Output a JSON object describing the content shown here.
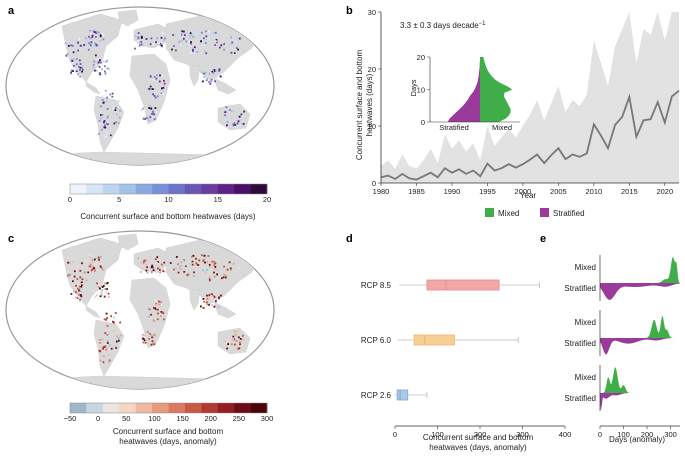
{
  "panels": {
    "a": "a",
    "b": "b",
    "c": "c",
    "d": "d",
    "e": "e"
  },
  "colors": {
    "mixed": "#3fae49",
    "stratified": "#9a3a9a",
    "line": "#777777",
    "band": "#e2e2e2",
    "land": "#d9d9d9",
    "rcp85": "#f4a7a7",
    "rcp60": "#f7cf94",
    "rcp26": "#a9c9e6"
  },
  "panel_a": {
    "colorbar_ticks": [
      "0",
      "5",
      "10",
      "15",
      "20"
    ],
    "colorbar_label": "Concurrent surface and bottom heatwaves (days)",
    "colorbar_colors": [
      "#eef4fb",
      "#d6e6f5",
      "#bdd5ee",
      "#a3c2e8",
      "#8aa9e1",
      "#7890d8",
      "#6c74c9",
      "#6a57b5",
      "#6a3c9f",
      "#5d2287",
      "#4b0f68",
      "#2d0a3a"
    ]
  },
  "panel_c": {
    "colorbar_ticks": [
      "−50",
      "0",
      "50",
      "100",
      "150",
      "200",
      "250",
      "300"
    ],
    "colorbar_label_line1": "Concurrent surface and bottom",
    "colorbar_label_line2": "heatwaves (days, anomaly)",
    "colorbar_colors": [
      "#9fb8c8",
      "#c8d6df",
      "#ece6e2",
      "#f5d5c4",
      "#f0b8a0",
      "#e69a7e",
      "#d97b60",
      "#c65a45",
      "#b03a31",
      "#921f22",
      "#6e0d15",
      "#4a0508"
    ]
  },
  "chart_data": [
    {
      "type": "area",
      "panel": "b",
      "annotation": "3.3 ± 0.3 days decade",
      "annotation_sup": "−1",
      "xlabel": "Year",
      "ylabel_line1": "Concurrent surface and bottom",
      "ylabel_line2": "heatwaves (days)",
      "xlim": [
        1980,
        2022
      ],
      "ylim": [
        0,
        30
      ],
      "xticks": [
        "1980",
        "1985",
        "1990",
        "1995",
        "2000",
        "2005",
        "2010",
        "2015",
        "2020"
      ],
      "yticks": [
        "0",
        "10",
        "20",
        "30"
      ],
      "x": [
        1980,
        1981,
        1982,
        1983,
        1984,
        1985,
        1986,
        1987,
        1988,
        1989,
        1990,
        1991,
        1992,
        1993,
        1994,
        1995,
        1996,
        1997,
        1998,
        1999,
        2000,
        2001,
        2002,
        2003,
        2004,
        2005,
        2006,
        2007,
        2008,
        2009,
        2010,
        2011,
        2012,
        2013,
        2014,
        2015,
        2016,
        2017,
        2018,
        2019,
        2020,
        2021,
        2022
      ],
      "mean": [
        1.0,
        1.3,
        0.7,
        1.6,
        0.8,
        0.6,
        1.2,
        1.8,
        1.0,
        2.6,
        1.8,
        2.4,
        1.6,
        2.2,
        1.2,
        3.4,
        2.2,
        2.6,
        3.3,
        2.7,
        3.3,
        4.1,
        5.0,
        3.5,
        4.9,
        6.1,
        4.2,
        5.0,
        4.6,
        5.2,
        10.3,
        8.3,
        6.1,
        10.2,
        11.6,
        15.1,
        8.1,
        11.0,
        11.2,
        14.2,
        10.6,
        15.2,
        16.2
      ],
      "upper": [
        3.0,
        4.0,
        2.5,
        5.0,
        3.0,
        2.5,
        4.0,
        6.0,
        3.5,
        8.5,
        6.0,
        7.5,
        5.5,
        7.0,
        4.0,
        10.0,
        6.5,
        8.0,
        9.5,
        8.0,
        10.0,
        12.0,
        14.5,
        11.0,
        14.0,
        17.0,
        12.5,
        14.5,
        13.5,
        15.5,
        25.0,
        21.0,
        17.0,
        24.0,
        27.0,
        32.0,
        21.0,
        27.0,
        26.0,
        31.0,
        25.0,
        31.0,
        32.0
      ],
      "legend": {
        "mixed": "Mixed",
        "stratified": "Stratified"
      },
      "inset": {
        "type": "histogram",
        "ylabel": "Days",
        "yticks": [
          "0",
          "10",
          "20"
        ],
        "ylim": [
          0,
          20
        ],
        "categories": [
          "Stratified",
          "Mixed"
        ],
        "bins": [
          0,
          1,
          2,
          3,
          4,
          5,
          6,
          7,
          8,
          9,
          10,
          11,
          12,
          13,
          14,
          15,
          16,
          17,
          18,
          19,
          20
        ],
        "mixed": [
          0.55,
          0.75,
          0.85,
          0.9,
          0.9,
          0.85,
          0.8,
          0.75,
          0.7,
          0.72,
          0.95,
          0.8,
          0.6,
          0.45,
          0.35,
          0.28,
          0.22,
          0.18,
          0.15,
          0.12,
          0.1
        ],
        "stratified": [
          0.95,
          0.9,
          0.8,
          0.7,
          0.6,
          0.5,
          0.42,
          0.35,
          0.3,
          0.22,
          0.16,
          0.12,
          0.08,
          0.06,
          0.04,
          0.03,
          0.02,
          0.01,
          0.01,
          0.0,
          0.0
        ]
      }
    },
    {
      "type": "box",
      "panel": "d",
      "xlabel_line1": "Concurrent surface and bottom",
      "xlabel_line2": "heatwaves (days, anomaly)",
      "xlim": [
        0,
        400
      ],
      "xticks": [
        "0",
        "100",
        "200",
        "300",
        "400"
      ],
      "categories": [
        "RCP 8.5",
        "RCP 6.0",
        "RCP 2.6"
      ],
      "boxes": [
        {
          "name": "RCP 8.5",
          "whisker_low": 10,
          "q1": 75,
          "median": 120,
          "q3": 245,
          "whisker_high": 340
        },
        {
          "name": "RCP 6.0",
          "whisker_low": 5,
          "q1": 45,
          "median": 70,
          "q3": 140,
          "whisker_high": 290
        },
        {
          "name": "RCP 2.6",
          "whisker_low": 0,
          "q1": 5,
          "median": 12,
          "q3": 30,
          "whisker_high": 75
        }
      ]
    },
    {
      "type": "histogram",
      "panel": "e",
      "xlabel": "Days (anomaly)",
      "xlim": [
        0,
        340
      ],
      "xticks": [
        "0",
        "100",
        "200",
        "300"
      ],
      "row_labels": [
        "Mixed",
        "Stratified"
      ],
      "rows": [
        {
          "name": "RCP 8.5",
          "mixed_peaks": [
            [
              280,
              0.15,
              20
            ],
            [
              310,
              1.0,
              12
            ],
            [
              325,
              0.6,
              6
            ]
          ],
          "stratified_peaks": [
            [
              40,
              1.0,
              35
            ],
            [
              150,
              0.25,
              90
            ],
            [
              280,
              0.2,
              40
            ]
          ]
        },
        {
          "name": "RCP 6.0",
          "mixed_peaks": [
            [
              230,
              0.7,
              15
            ],
            [
              265,
              0.85,
              10
            ],
            [
              285,
              0.3,
              10
            ]
          ],
          "stratified_peaks": [
            [
              25,
              1.0,
              20
            ],
            [
              120,
              0.35,
              60
            ],
            [
              240,
              0.15,
              35
            ]
          ]
        },
        {
          "name": "RCP 2.6",
          "mixed_peaks": [
            [
              35,
              0.6,
              10
            ],
            [
              65,
              1.0,
              14
            ],
            [
              100,
              0.3,
              12
            ]
          ],
          "stratified_peaks": [
            [
              4,
              1.0,
              5
            ],
            [
              25,
              0.35,
              20
            ],
            [
              70,
              0.15,
              25
            ]
          ]
        }
      ]
    }
  ]
}
